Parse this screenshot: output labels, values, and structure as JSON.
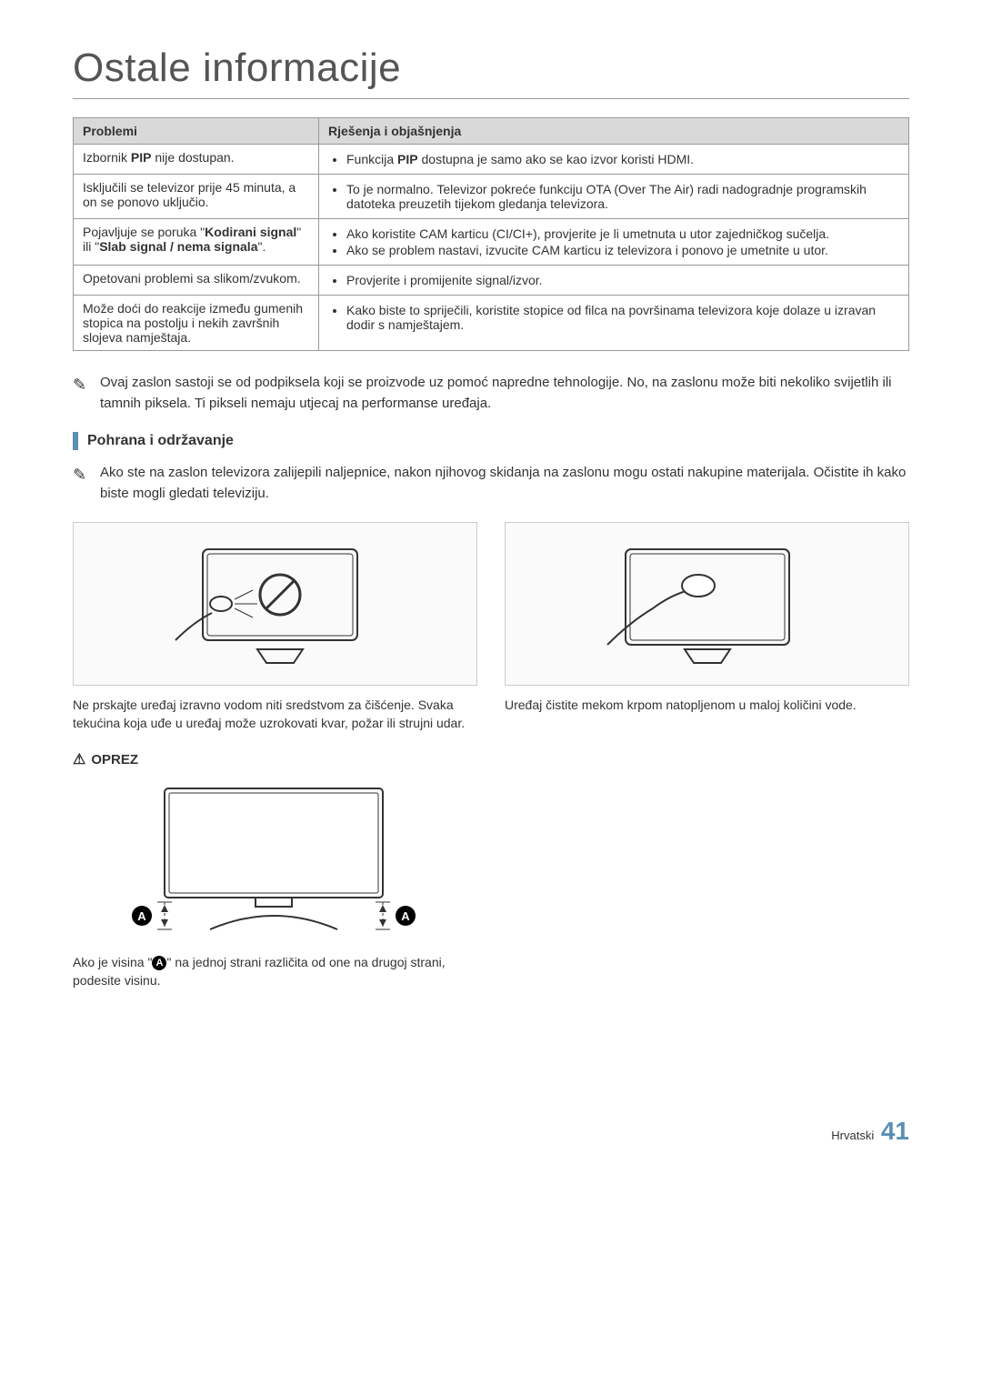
{
  "title": "Ostale informacije",
  "table": {
    "headers": {
      "problem": "Problemi",
      "solution": "Rješenja i objašnjenja"
    },
    "rows": [
      {
        "problem_html": "Izbornik <b>PIP</b> nije dostupan.",
        "solutions_html": [
          "Funkcija <b>PIP</b> dostupna je samo ako se kao izvor koristi HDMI."
        ]
      },
      {
        "problem_html": "Isključili se televizor prije 45 minuta, a on se ponovo uključio.",
        "solutions_html": [
          "To je normalno. Televizor pokreće funkciju OTA (Over The Air) radi nadogradnje programskih datoteka preuzetih tijekom gledanja televizora."
        ]
      },
      {
        "problem_html": "Pojavljuje se poruka \"<b>Kodirani signal</b>\" ili \"<b>Slab signal / nema signala</b>\".",
        "solutions_html": [
          "Ako koristite CAM karticu (CI/CI+), provjerite je li umetnuta u utor zajedničkog sučelja.",
          "Ako se problem nastavi, izvucite CAM karticu iz televizora i ponovo je umetnite u utor."
        ]
      },
      {
        "problem_html": "Opetovani problemi sa slikom/zvukom.",
        "solutions_html": [
          "Provjerite i promijenite signal/izvor."
        ]
      },
      {
        "problem_html": "Može doći do reakcije između gumenih stopica na postolju i nekih završnih slojeva namještaja.",
        "solutions_html": [
          "Kako biste to spriječili, koristite stopice od filca na površinama televizora koje dolaze u izravan dodir s namještajem."
        ]
      }
    ]
  },
  "note1": "Ovaj zaslon sastoji se od podpiksela koji se proizvode uz pomoć napredne tehnologije. No, na zaslonu može biti nekoliko svijetlih ili tamnih piksela. Ti pikseli nemaju utjecaj na performanse uređaja.",
  "section_title": "Pohrana i održavanje",
  "note2": "Ako ste na zaslon televizora zalijepili naljepnice, nakon njihovog skidanja na zaslonu mogu ostati nakupine materijala. Očistite ih kako biste mogli gledati televiziju.",
  "caption_left": "Ne prskajte uređaj izravno vodom niti sredstvom za čišćenje. Svaka tekućina koja uđe u uređaj može uzrokovati kvar, požar ili strujni udar.",
  "caption_right": "Uređaj čistite mekom krpom natopljenom u maloj količini vode.",
  "oprez": "OPREZ",
  "oprez_caption_pre": "Ako je visina \"",
  "oprez_caption_post": "\" na jednoj strani različita od one na drugoj strani, podesite visinu.",
  "a_label": "A",
  "footer_lang": "Hrvatski",
  "footer_page": "41",
  "colors": {
    "accent": "#5b8fb5",
    "border": "#999999",
    "header_bg": "#d9d9d9"
  }
}
